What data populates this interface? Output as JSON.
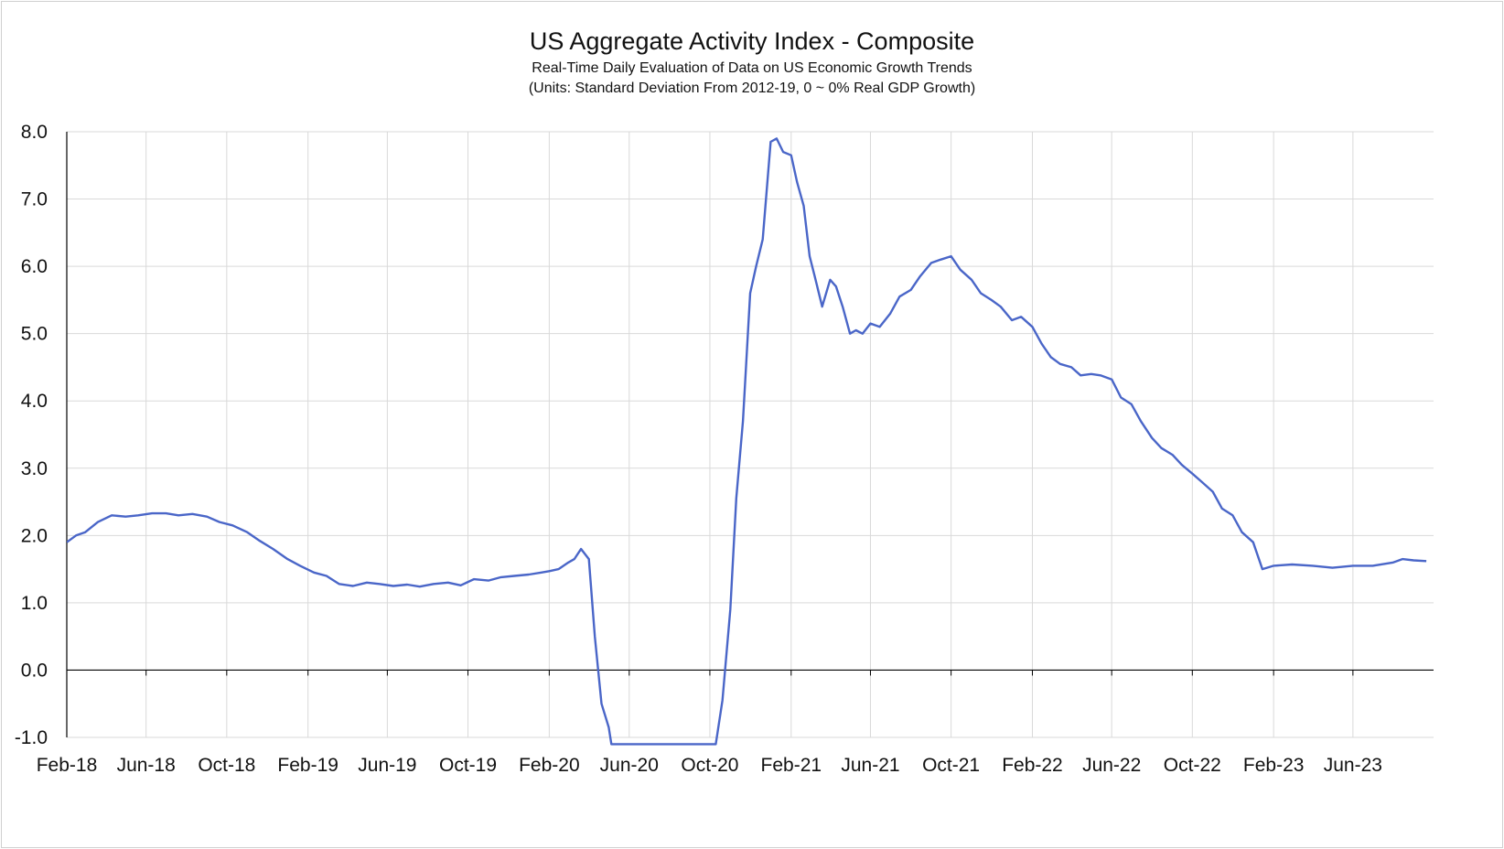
{
  "chart_data": {
    "type": "line",
    "title": "US Aggregate Activity Index - Composite",
    "subtitle_lines": [
      "Real-Time Daily Evaluation of Data on US Economic Growth Trends",
      "(Units: Standard Deviation From 2012-19, 0 ~ 0% Real GDP Growth)"
    ],
    "xlabel": "",
    "ylabel": "",
    "ylim": [
      -1.0,
      8.0
    ],
    "y_ticks": [
      "8.0",
      "7.0",
      "6.0",
      "5.0",
      "4.0",
      "3.0",
      "2.0",
      "1.0",
      "0.0",
      "-1.0"
    ],
    "x_range": [
      "2018-02-01",
      "2023-10-01"
    ],
    "x_ticks": [
      "Feb-18",
      "Jun-18",
      "Oct-18",
      "Feb-19",
      "Jun-19",
      "Oct-19",
      "Feb-20",
      "Jun-20",
      "Oct-20",
      "Feb-21",
      "Jun-21",
      "Oct-21",
      "Feb-22",
      "Jun-22",
      "Oct-22",
      "Feb-23",
      "Jun-23"
    ],
    "grid": true,
    "legend": "none",
    "line_color": "#4a66c8",
    "series": [
      {
        "x": [
          "2018-02-01",
          "2018-02-15",
          "2018-03-01",
          "2018-03-20",
          "2018-04-10",
          "2018-05-01",
          "2018-05-20",
          "2018-06-10",
          "2018-07-01",
          "2018-07-20",
          "2018-08-10",
          "2018-09-01",
          "2018-09-20",
          "2018-10-10",
          "2018-11-01",
          "2018-11-20",
          "2018-12-10",
          "2019-01-01",
          "2019-01-20",
          "2019-02-10",
          "2019-03-01",
          "2019-03-20",
          "2019-04-10",
          "2019-05-01",
          "2019-05-20",
          "2019-06-10",
          "2019-07-01",
          "2019-07-20",
          "2019-08-10",
          "2019-09-01",
          "2019-09-20",
          "2019-10-10",
          "2019-11-01",
          "2019-11-20",
          "2019-12-10",
          "2020-01-01",
          "2020-01-20",
          "2020-02-01",
          "2020-02-15",
          "2020-03-01",
          "2020-03-10",
          "2020-03-20",
          "2020-04-01",
          "2020-04-10",
          "2020-04-20",
          "2020-05-01",
          "2020-05-05",
          "2020-10-10",
          "2020-10-20",
          "2020-11-01",
          "2020-11-10",
          "2020-11-20",
          "2020-12-01",
          "2020-12-10",
          "2020-12-20",
          "2021-01-01",
          "2021-01-10",
          "2021-01-20",
          "2021-02-01",
          "2021-02-10",
          "2021-02-20",
          "2021-03-01",
          "2021-03-10",
          "2021-03-20",
          "2021-04-01",
          "2021-04-10",
          "2021-04-20",
          "2021-05-01",
          "2021-05-10",
          "2021-05-20",
          "2021-06-01",
          "2021-06-15",
          "2021-07-01",
          "2021-07-15",
          "2021-08-01",
          "2021-08-15",
          "2021-09-01",
          "2021-09-15",
          "2021-10-01",
          "2021-10-15",
          "2021-11-01",
          "2021-11-15",
          "2021-12-01",
          "2021-12-15",
          "2022-01-01",
          "2022-01-15",
          "2022-02-01",
          "2022-02-15",
          "2022-03-01",
          "2022-03-15",
          "2022-04-01",
          "2022-04-15",
          "2022-05-01",
          "2022-05-15",
          "2022-06-01",
          "2022-06-15",
          "2022-07-01",
          "2022-07-15",
          "2022-08-01",
          "2022-08-15",
          "2022-09-01",
          "2022-09-15",
          "2022-10-01",
          "2022-10-15",
          "2022-11-01",
          "2022-11-15",
          "2022-12-01",
          "2022-12-15",
          "2023-01-01",
          "2023-01-15",
          "2023-02-01",
          "2023-03-01",
          "2023-04-01",
          "2023-05-01",
          "2023-06-01",
          "2023-07-01",
          "2023-08-01",
          "2023-08-15",
          "2023-09-01",
          "2023-09-20"
        ],
        "y": [
          1.9,
          2.0,
          2.05,
          2.2,
          2.3,
          2.28,
          2.3,
          2.33,
          2.33,
          2.3,
          2.32,
          2.28,
          2.2,
          2.15,
          2.05,
          1.92,
          1.8,
          1.65,
          1.55,
          1.45,
          1.4,
          1.28,
          1.25,
          1.3,
          1.28,
          1.25,
          1.27,
          1.24,
          1.28,
          1.3,
          1.26,
          1.35,
          1.33,
          1.38,
          1.4,
          1.42,
          1.45,
          1.47,
          1.5,
          1.6,
          1.65,
          1.8,
          1.65,
          0.5,
          -0.5,
          -0.85,
          -1.1,
          -1.1,
          -0.45,
          0.9,
          2.55,
          3.7,
          5.6,
          6.0,
          6.4,
          7.85,
          7.9,
          7.7,
          7.65,
          7.25,
          6.9,
          6.15,
          5.8,
          5.4,
          5.8,
          5.7,
          5.4,
          5.0,
          5.05,
          5.0,
          5.15,
          5.1,
          5.3,
          5.55,
          5.65,
          5.85,
          6.05,
          6.1,
          6.15,
          5.95,
          5.8,
          5.6,
          5.5,
          5.4,
          5.2,
          5.25,
          5.1,
          4.85,
          4.65,
          4.55,
          4.5,
          4.38,
          4.4,
          4.38,
          4.32,
          4.05,
          3.95,
          3.7,
          3.45,
          3.3,
          3.2,
          3.05,
          2.92,
          2.8,
          2.65,
          2.4,
          2.3,
          2.05,
          1.9,
          1.5,
          1.55,
          1.57,
          1.55,
          1.52,
          1.55,
          1.55,
          1.6,
          1.65,
          1.63,
          1.62
        ]
      }
    ]
  }
}
